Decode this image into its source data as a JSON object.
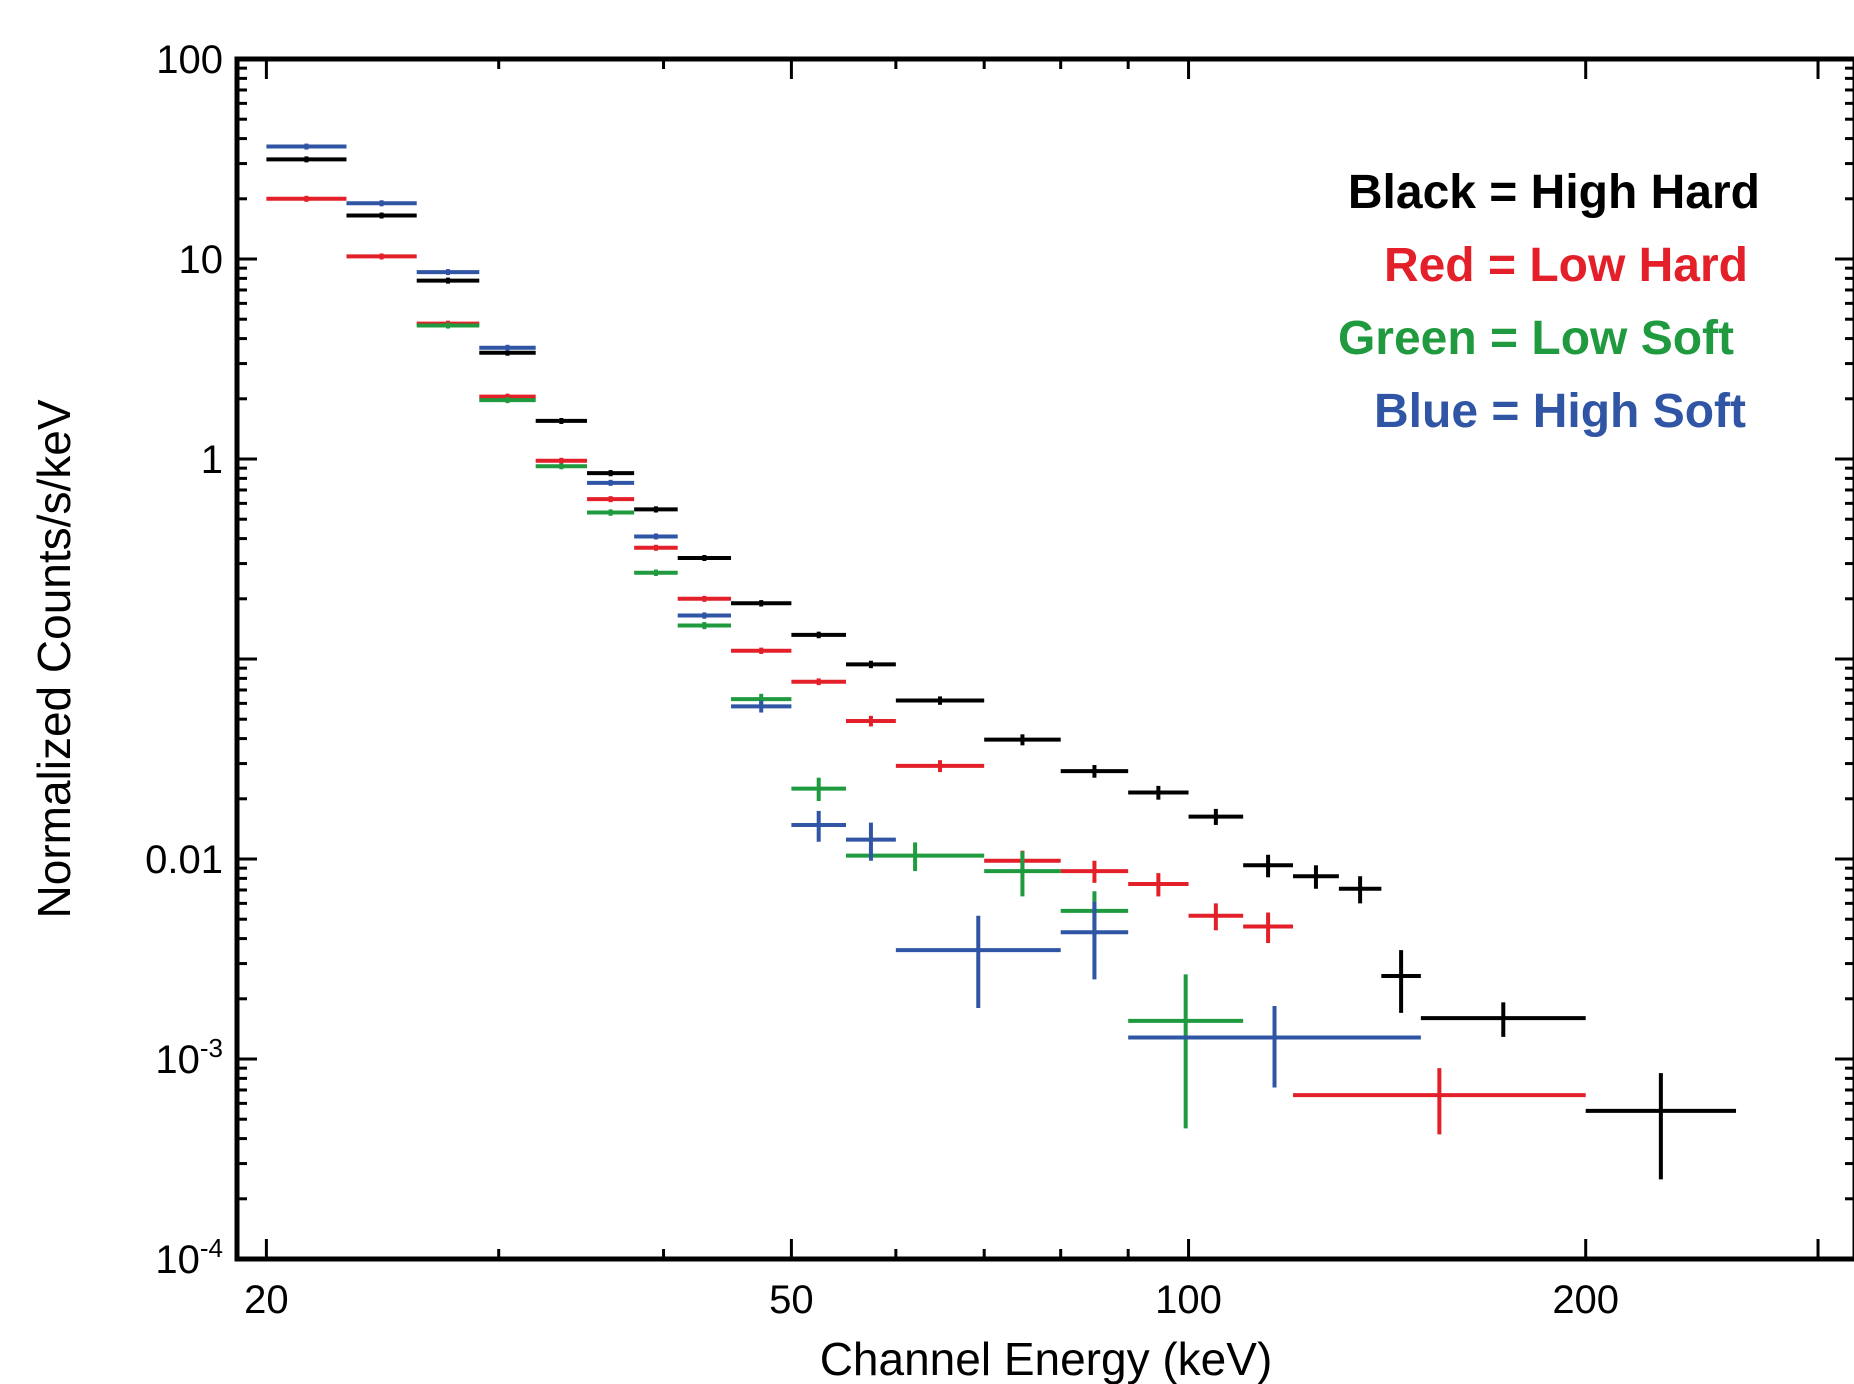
{
  "chart_data": {
    "type": "scatter",
    "subtype": "error-bars",
    "title": "",
    "xlabel": "Channel Energy (keV)",
    "ylabel": "Normalized Counts/s/keV",
    "xscale": "log",
    "yscale": "log",
    "xlim": [
      19,
      320
    ],
    "ylim": [
      0.0001,
      100
    ],
    "x_ticks": [
      {
        "value": 20,
        "label": "20"
      },
      {
        "value": 50,
        "label": "50"
      },
      {
        "value": 100,
        "label": "100"
      },
      {
        "value": 200,
        "label": "200"
      }
    ],
    "y_ticks": [
      {
        "value": 100,
        "base": "100",
        "exp": ""
      },
      {
        "value": 10,
        "base": "10",
        "exp": ""
      },
      {
        "value": 1,
        "base": "1",
        "exp": ""
      },
      {
        "value": 0.01,
        "base": "0.01",
        "exp": ""
      },
      {
        "value": 0.001,
        "base": "10",
        "exp": "-3"
      },
      {
        "value": 0.0001,
        "base": "10",
        "exp": "-4"
      }
    ],
    "legend_position": "top-right",
    "legend": [
      {
        "text": "Black = High Hard",
        "color": "#000000"
      },
      {
        "text": "Red = Low Hard",
        "color": "#e3202a"
      },
      {
        "text": "Green = Low Soft",
        "color": "#1f9a3e"
      },
      {
        "text": "Blue = High Soft",
        "color": "#2f55a4"
      }
    ],
    "series": [
      {
        "color": "#000000",
        "points": [
          {
            "xlo": 20.0,
            "xhi": 23.0,
            "y": 31.5,
            "ylo": 30.5,
            "yhi": 32.5
          },
          {
            "xlo": 23.0,
            "xhi": 26.0,
            "y": 16.5,
            "ylo": 16.0,
            "yhi": 17.0
          },
          {
            "xlo": 26.0,
            "xhi": 29.0,
            "y": 7.8,
            "ylo": 7.6,
            "yhi": 8.0
          },
          {
            "xlo": 29.0,
            "xhi": 32.0,
            "y": 3.4,
            "ylo": 3.3,
            "yhi": 3.5
          },
          {
            "xlo": 32.0,
            "xhi": 35.0,
            "y": 1.55,
            "ylo": 1.5,
            "yhi": 1.6
          },
          {
            "xlo": 35.0,
            "xhi": 38.0,
            "y": 0.85,
            "ylo": 0.82,
            "yhi": 0.88
          },
          {
            "xlo": 38.0,
            "xhi": 41.0,
            "y": 0.56,
            "ylo": 0.54,
            "yhi": 0.58
          },
          {
            "xlo": 41.0,
            "xhi": 45.0,
            "y": 0.32,
            "ylo": 0.31,
            "yhi": 0.33
          },
          {
            "xlo": 45.0,
            "xhi": 50.0,
            "y": 0.19,
            "ylo": 0.183,
            "yhi": 0.197
          },
          {
            "xlo": 50.0,
            "xhi": 55.0,
            "y": 0.132,
            "ylo": 0.127,
            "yhi": 0.137
          },
          {
            "xlo": 55.0,
            "xhi": 60.0,
            "y": 0.094,
            "ylo": 0.09,
            "yhi": 0.098
          },
          {
            "xlo": 60.0,
            "xhi": 70.0,
            "y": 0.062,
            "ylo": 0.059,
            "yhi": 0.065
          },
          {
            "xlo": 70.0,
            "xhi": 80.0,
            "y": 0.0395,
            "ylo": 0.037,
            "yhi": 0.042
          },
          {
            "xlo": 80.0,
            "xhi": 90.0,
            "y": 0.0275,
            "ylo": 0.0255,
            "yhi": 0.0295
          },
          {
            "xlo": 90.0,
            "xhi": 100.0,
            "y": 0.0215,
            "ylo": 0.0198,
            "yhi": 0.0232
          },
          {
            "xlo": 100.0,
            "xhi": 110.0,
            "y": 0.0163,
            "ylo": 0.0148,
            "yhi": 0.0178
          },
          {
            "xlo": 110.0,
            "xhi": 120.0,
            "y": 0.0093,
            "ylo": 0.0081,
            "yhi": 0.0105
          },
          {
            "xlo": 120.0,
            "xhi": 130.0,
            "y": 0.0082,
            "ylo": 0.0071,
            "yhi": 0.0093
          },
          {
            "xlo": 130.0,
            "xhi": 140.0,
            "y": 0.0071,
            "ylo": 0.006,
            "yhi": 0.0082
          },
          {
            "xlo": 140.0,
            "xhi": 150.0,
            "y": 0.0026,
            "ylo": 0.0017,
            "yhi": 0.0035
          },
          {
            "xlo": 150.0,
            "xhi": 200.0,
            "y": 0.0016,
            "ylo": 0.00129,
            "yhi": 0.00192
          },
          {
            "xlo": 200.0,
            "xhi": 260.0,
            "y": 0.00055,
            "ylo": 0.00025,
            "yhi": 0.00085
          }
        ]
      },
      {
        "color": "#e3202a",
        "points": [
          {
            "xlo": 20.0,
            "xhi": 23.0,
            "y": 20.0,
            "ylo": 19.5,
            "yhi": 20.5
          },
          {
            "xlo": 23.0,
            "xhi": 26.0,
            "y": 10.3,
            "ylo": 10.0,
            "yhi": 10.6
          },
          {
            "xlo": 26.0,
            "xhi": 29.0,
            "y": 4.75,
            "ylo": 4.6,
            "yhi": 4.9
          },
          {
            "xlo": 29.0,
            "xhi": 32.0,
            "y": 2.05,
            "ylo": 2.0,
            "yhi": 2.1
          },
          {
            "xlo": 32.0,
            "xhi": 35.0,
            "y": 0.98,
            "ylo": 0.95,
            "yhi": 1.01
          },
          {
            "xlo": 35.0,
            "xhi": 38.0,
            "y": 0.63,
            "ylo": 0.61,
            "yhi": 0.65
          },
          {
            "xlo": 38.0,
            "xhi": 41.0,
            "y": 0.36,
            "ylo": 0.35,
            "yhi": 0.37
          },
          {
            "xlo": 41.0,
            "xhi": 45.0,
            "y": 0.2,
            "ylo": 0.194,
            "yhi": 0.206
          },
          {
            "xlo": 45.0,
            "xhi": 50.0,
            "y": 0.11,
            "ylo": 0.106,
            "yhi": 0.114
          },
          {
            "xlo": 50.0,
            "xhi": 55.0,
            "y": 0.077,
            "ylo": 0.074,
            "yhi": 0.08
          },
          {
            "xlo": 55.0,
            "xhi": 60.0,
            "y": 0.049,
            "ylo": 0.046,
            "yhi": 0.052
          },
          {
            "xlo": 60.0,
            "xhi": 70.0,
            "y": 0.0292,
            "ylo": 0.0272,
            "yhi": 0.0312
          },
          {
            "xlo": 70.0,
            "xhi": 80.0,
            "y": 0.0098,
            "ylo": 0.0086,
            "yhi": 0.011
          },
          {
            "xlo": 80.0,
            "xhi": 90.0,
            "y": 0.0087,
            "ylo": 0.0076,
            "yhi": 0.0098
          },
          {
            "xlo": 90.0,
            "xhi": 100.0,
            "y": 0.0075,
            "ylo": 0.0065,
            "yhi": 0.0085
          },
          {
            "xlo": 100.0,
            "xhi": 110.0,
            "y": 0.0052,
            "ylo": 0.0044,
            "yhi": 0.006
          },
          {
            "xlo": 110.0,
            "xhi": 120.0,
            "y": 0.0046,
            "ylo": 0.0038,
            "yhi": 0.0054
          },
          {
            "xlo": 120.0,
            "xhi": 200.0,
            "y": 0.00066,
            "ylo": 0.00042,
            "yhi": 0.0009
          }
        ]
      },
      {
        "color": "#1f9a3e",
        "points": [
          {
            "xlo": 26.0,
            "xhi": 29.0,
            "y": 4.65,
            "ylo": 4.5,
            "yhi": 4.8
          },
          {
            "xlo": 29.0,
            "xhi": 32.0,
            "y": 1.97,
            "ylo": 1.92,
            "yhi": 2.02
          },
          {
            "xlo": 32.0,
            "xhi": 35.0,
            "y": 0.92,
            "ylo": 0.89,
            "yhi": 0.95
          },
          {
            "xlo": 35.0,
            "xhi": 38.0,
            "y": 0.54,
            "ylo": 0.52,
            "yhi": 0.56
          },
          {
            "xlo": 38.0,
            "xhi": 41.0,
            "y": 0.27,
            "ylo": 0.26,
            "yhi": 0.28
          },
          {
            "xlo": 41.0,
            "xhi": 45.0,
            "y": 0.147,
            "ylo": 0.141,
            "yhi": 0.153
          },
          {
            "xlo": 45.0,
            "xhi": 50.0,
            "y": 0.063,
            "ylo": 0.059,
            "yhi": 0.067
          },
          {
            "xlo": 50.0,
            "xhi": 55.0,
            "y": 0.0225,
            "ylo": 0.0195,
            "yhi": 0.0255
          },
          {
            "xlo": 55.0,
            "xhi": 70.0,
            "y": 0.0104,
            "ylo": 0.0087,
            "yhi": 0.0121
          },
          {
            "xlo": 70.0,
            "xhi": 80.0,
            "y": 0.0087,
            "ylo": 0.0065,
            "yhi": 0.0109
          },
          {
            "xlo": 80.0,
            "xhi": 90.0,
            "y": 0.0055,
            "ylo": 0.0041,
            "yhi": 0.0069
          },
          {
            "xlo": 90.0,
            "xhi": 110.0,
            "y": 0.00155,
            "ylo": 0.00045,
            "yhi": 0.00265
          }
        ]
      },
      {
        "color": "#2f55a4",
        "points": [
          {
            "xlo": 20.0,
            "xhi": 23.0,
            "y": 36.5,
            "ylo": 35.5,
            "yhi": 37.5
          },
          {
            "xlo": 23.0,
            "xhi": 26.0,
            "y": 19.0,
            "ylo": 18.5,
            "yhi": 19.5
          },
          {
            "xlo": 26.0,
            "xhi": 29.0,
            "y": 8.6,
            "ylo": 8.4,
            "yhi": 8.8
          },
          {
            "xlo": 29.0,
            "xhi": 32.0,
            "y": 3.6,
            "ylo": 3.5,
            "yhi": 3.7
          },
          {
            "xlo": 35.0,
            "xhi": 38.0,
            "y": 0.76,
            "ylo": 0.74,
            "yhi": 0.78
          },
          {
            "xlo": 38.0,
            "xhi": 41.0,
            "y": 0.41,
            "ylo": 0.4,
            "yhi": 0.42
          },
          {
            "xlo": 41.0,
            "xhi": 45.0,
            "y": 0.165,
            "ylo": 0.159,
            "yhi": 0.171
          },
          {
            "xlo": 45.0,
            "xhi": 50.0,
            "y": 0.058,
            "ylo": 0.054,
            "yhi": 0.062
          },
          {
            "xlo": 50.0,
            "xhi": 55.0,
            "y": 0.0148,
            "ylo": 0.0122,
            "yhi": 0.0174
          },
          {
            "xlo": 55.0,
            "xhi": 60.0,
            "y": 0.0125,
            "ylo": 0.0098,
            "yhi": 0.0152
          },
          {
            "xlo": 60.0,
            "xhi": 80.0,
            "y": 0.0035,
            "ylo": 0.0018,
            "yhi": 0.0052
          },
          {
            "xlo": 80.0,
            "xhi": 90.0,
            "y": 0.0043,
            "ylo": 0.0025,
            "yhi": 0.0061
          },
          {
            "xlo": 90.0,
            "xhi": 150.0,
            "y": 0.00128,
            "ylo": 0.00072,
            "yhi": 0.00184
          }
        ]
      }
    ]
  }
}
